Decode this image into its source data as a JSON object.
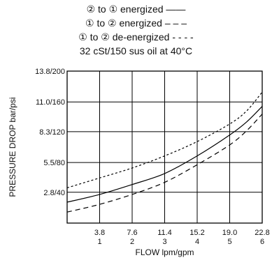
{
  "chart_data": {
    "type": "line",
    "title_lines": [
      "② to ① energized ——",
      "① to ② energized – – –",
      "① to ② de-energized - - - -",
      "32 cSt/150 sus oil at 40°C"
    ],
    "xlabel": "FLOW lpm/gpm",
    "ylabel": "PRESSURE DROP bar/psi",
    "x_ticks": [
      {
        "value": 3.8,
        "line1": "3.8",
        "line2": "1"
      },
      {
        "value": 7.6,
        "line1": "7.6",
        "line2": "2"
      },
      {
        "value": 11.4,
        "line1": "11.4",
        "line2": "3"
      },
      {
        "value": 15.2,
        "line1": "15.2",
        "line2": "4"
      },
      {
        "value": 19.0,
        "line1": "19.0",
        "line2": "5"
      },
      {
        "value": 22.8,
        "line1": "22.8",
        "line2": "6"
      }
    ],
    "y_ticks": [
      {
        "value": 2.8,
        "label": "2.8/40"
      },
      {
        "value": 5.5,
        "label": "5.5/80"
      },
      {
        "value": 8.3,
        "label": "8.3/120"
      },
      {
        "value": 11.0,
        "label": "11.0/160"
      },
      {
        "value": 13.8,
        "label": "13.8/200"
      }
    ],
    "xlim": [
      0,
      22.8
    ],
    "ylim": [
      0,
      13.8
    ],
    "grid": true,
    "series": [
      {
        "style": "solid",
        "x": [
          0.0,
          3.8,
          7.6,
          11.4,
          15.2,
          19.0,
          21.0,
          22.8
        ],
        "y": [
          1.9,
          2.6,
          3.5,
          4.5,
          6.1,
          8.0,
          9.2,
          10.6
        ]
      },
      {
        "style": "dashed",
        "x": [
          0.0,
          3.8,
          7.6,
          11.4,
          15.2,
          19.0,
          21.0,
          22.8
        ],
        "y": [
          1.0,
          1.7,
          2.6,
          3.7,
          5.3,
          7.1,
          8.4,
          9.9
        ]
      },
      {
        "style": "dotted",
        "x": [
          0.0,
          3.8,
          7.6,
          11.4,
          15.2,
          19.0,
          21.0,
          22.8
        ],
        "y": [
          3.2,
          4.1,
          5.0,
          6.1,
          7.4,
          9.0,
          10.2,
          11.9
        ]
      }
    ]
  }
}
